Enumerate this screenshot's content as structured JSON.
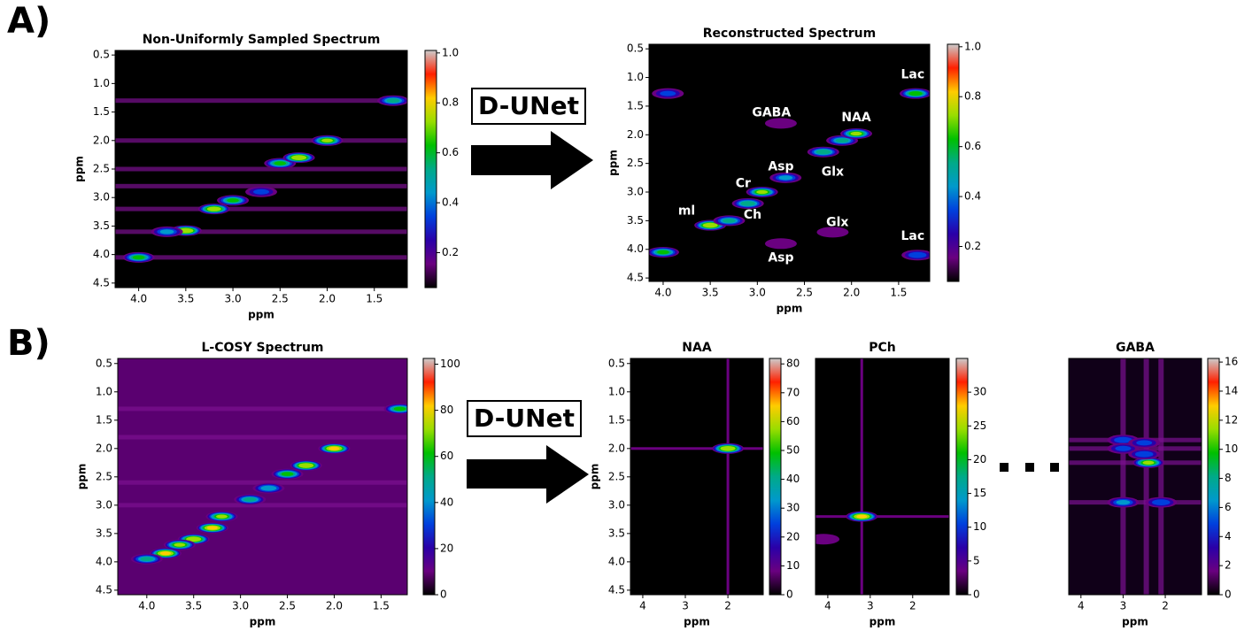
{
  "labels": {
    "a": "A)",
    "b": "B)"
  },
  "arrows": [
    "D-UNet",
    "D-UNet"
  ],
  "chart_data": [
    {
      "type": "heatmap",
      "title": "Non-Uniformly Sampled Spectrum",
      "xlabel": "ppm",
      "ylabel": "ppm",
      "xlim": [
        4.25,
        1.15
      ],
      "ylim": [
        0.42,
        4.58
      ],
      "xticks": [
        {
          "value": 4,
          "label": "4.0"
        },
        3.5,
        {
          "value": 3,
          "label": "3.0"
        },
        2.5,
        {
          "value": 2,
          "label": "2.0"
        },
        1.5
      ],
      "yticks": [
        0.5,
        {
          "value": 1,
          "label": "1.0"
        },
        1.5,
        {
          "value": 2,
          "label": "2.0"
        },
        2.5,
        {
          "value": 3,
          "label": "3.0"
        },
        3.5,
        {
          "value": 4,
          "label": "4.0"
        },
        4.5
      ],
      "clim": [
        0.06,
        1.01
      ],
      "cticks": [
        0.2,
        0.4,
        0.6,
        0.8,
        {
          "value": 1,
          "label": "1.0"
        }
      ]
    },
    {
      "type": "heatmap",
      "title": "Reconstructed Spectrum",
      "xlabel": "ppm",
      "ylabel": "ppm",
      "xlim": [
        4.15,
        1.17
      ],
      "ylim": [
        0.42,
        4.56
      ],
      "xticks": [
        {
          "value": 4,
          "label": "4.0"
        },
        3.5,
        {
          "value": 3,
          "label": "3.0"
        },
        2.5,
        {
          "value": 2,
          "label": "2.0"
        },
        1.5
      ],
      "yticks": [
        0.5,
        {
          "value": 1,
          "label": "1.0"
        },
        1.5,
        {
          "value": 2,
          "label": "2.0"
        },
        2.5,
        {
          "value": 3,
          "label": "3.0"
        },
        3.5,
        {
          "value": 4,
          "label": "4.0"
        },
        4.5
      ],
      "clim": [
        0.06,
        1.01
      ],
      "cticks": [
        0.2,
        0.4,
        0.6,
        0.8,
        {
          "value": 1,
          "label": "1.0"
        }
      ],
      "annotations": [
        "Lac",
        "GABA",
        "NAA",
        "Asp",
        "Glx",
        "Cr",
        "ml",
        "Ch",
        "Glx",
        "Lac",
        "Asp"
      ]
    },
    {
      "type": "heatmap",
      "title": "L-COSY Spectrum",
      "xlabel": "ppm",
      "ylabel": "ppm",
      "xlim": [
        4.31,
        1.22
      ],
      "ylim": [
        0.41,
        4.58
      ],
      "xticks": [
        {
          "value": 4,
          "label": "4.0"
        },
        3.5,
        {
          "value": 3,
          "label": "3.0"
        },
        2.5,
        {
          "value": 2,
          "label": "2.0"
        },
        1.5
      ],
      "yticks": [
        0.5,
        {
          "value": 1,
          "label": "1.0"
        },
        1.5,
        {
          "value": 2,
          "label": "2.0"
        },
        2.5,
        {
          "value": 3,
          "label": "3.0"
        },
        3.5,
        {
          "value": 4,
          "label": "4.0"
        },
        4.5
      ],
      "clim": [
        0,
        102.5
      ],
      "cticks": [
        0,
        20,
        40,
        60,
        80,
        100
      ]
    },
    {
      "type": "heatmap",
      "title": "NAA",
      "xlabel": "ppm",
      "ylabel": "ppm",
      "xlim": [
        4.29,
        1.17
      ],
      "ylim": [
        0.41,
        4.58
      ],
      "xticks": [
        4,
        3,
        2
      ],
      "yticks": [
        0.5,
        {
          "value": 1,
          "label": "1.0"
        },
        1.5,
        {
          "value": 2,
          "label": "2.0"
        },
        2.5,
        {
          "value": 3,
          "label": "3.0"
        },
        3.5,
        {
          "value": 4,
          "label": "4.0"
        },
        4.5
      ],
      "clim": [
        0,
        81.9
      ],
      "cticks": [
        0,
        10,
        20,
        30,
        40,
        50,
        60,
        70,
        80
      ]
    },
    {
      "type": "heatmap",
      "title": "PCh",
      "xlabel": "ppm",
      "xlim": [
        4.29,
        1.14
      ],
      "ylim": [
        0.41,
        4.58
      ],
      "xticks": [
        4,
        3,
        2
      ],
      "clim": [
        0,
        35
      ],
      "cticks": [
        0,
        5,
        10,
        15,
        20,
        25,
        30
      ]
    },
    {
      "type": "heatmap",
      "title": "GABA",
      "xlabel": "ppm",
      "xlim": [
        4.29,
        1.14
      ],
      "ylim": [
        0.41,
        4.58
      ],
      "xticks": [
        4,
        3,
        2
      ],
      "clim": [
        0,
        16.25
      ],
      "cticks": [
        0,
        2,
        4,
        6,
        8,
        10,
        12,
        14,
        16
      ]
    }
  ]
}
